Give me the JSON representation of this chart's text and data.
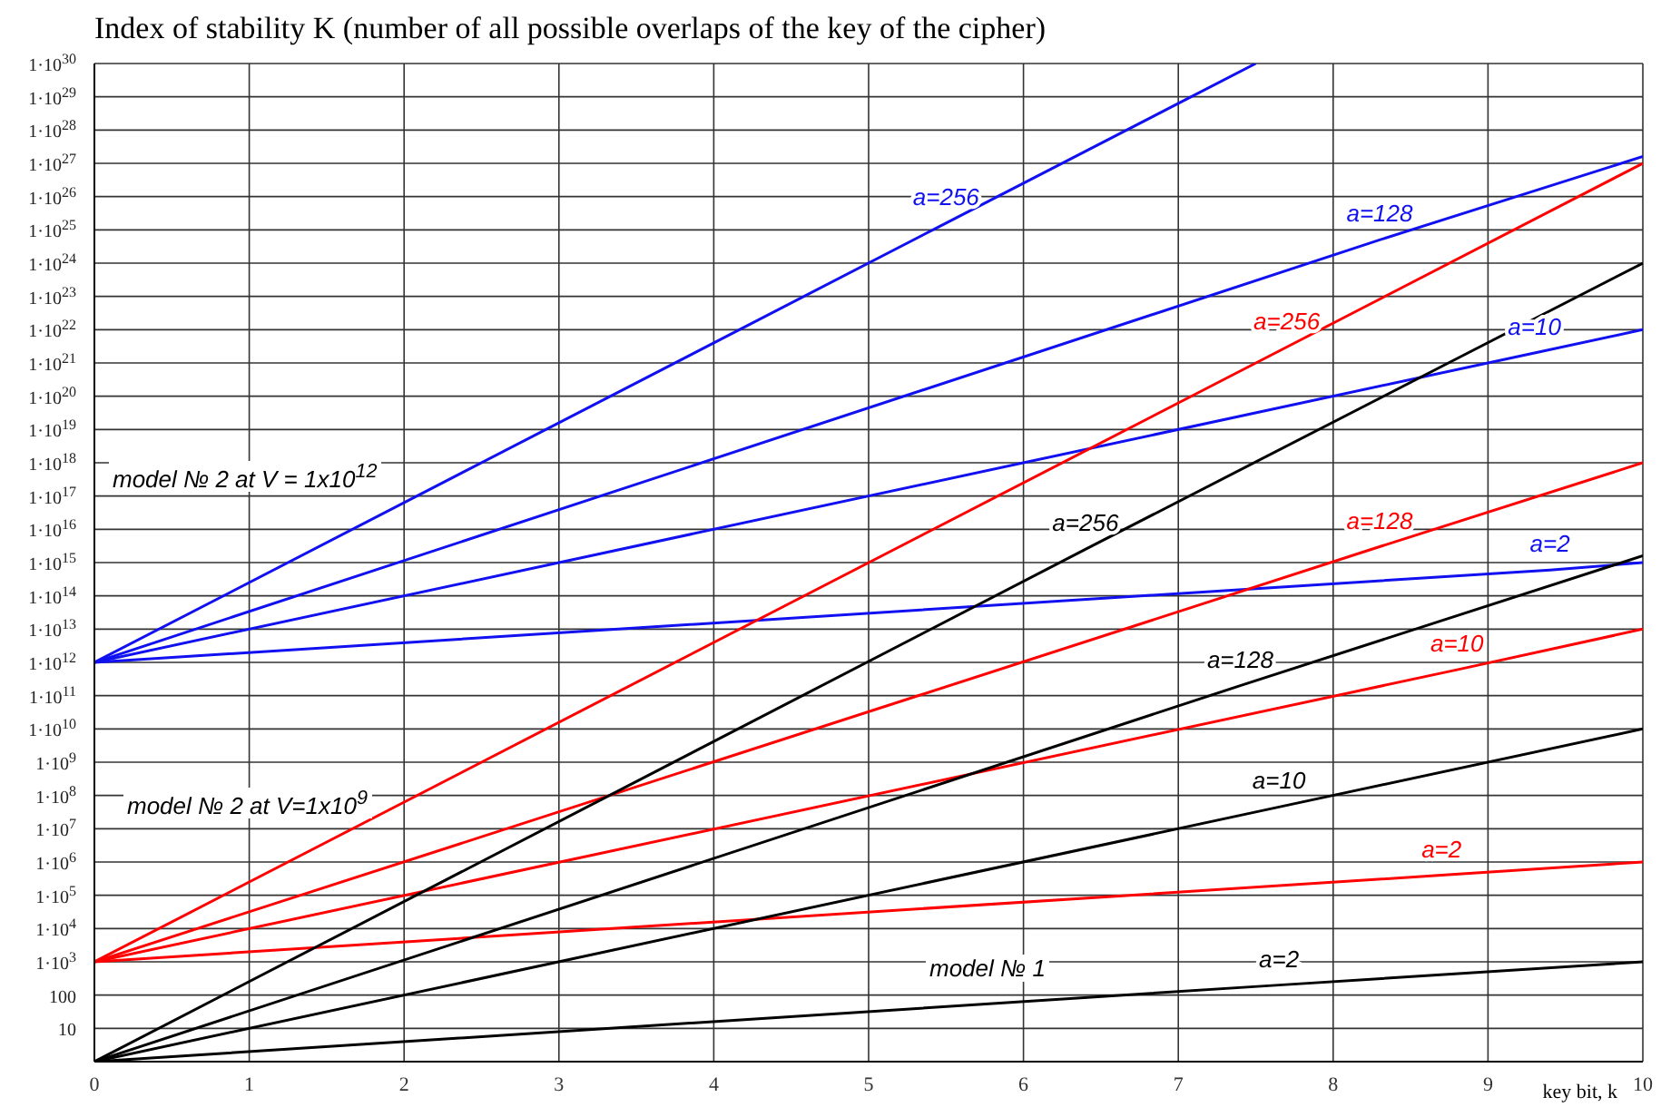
{
  "chart_data": {
    "type": "line",
    "title": "Index of stability K (number of all possible overlaps of the key of the cipher)",
    "xlabel": "key bit, k",
    "log": "y",
    "grid": true,
    "marker": "none",
    "line_style": "solid",
    "xlim": [
      0,
      10
    ],
    "xticks": [
      0,
      1,
      2,
      3,
      4,
      5,
      6,
      7,
      8,
      9,
      10
    ],
    "ylim": [
      1,
      1e+30
    ],
    "yticks": [
      10,
      100,
      {
        "value": 1000.0,
        "label": "1·10$^{3}$"
      },
      {
        "value": 10000.0,
        "label": "1·10$^{4}$"
      },
      {
        "value": 100000.0,
        "label": "1·10$^{5}$"
      },
      {
        "value": 1000000.0,
        "label": "1·10$^{6}$"
      },
      {
        "value": 10000000.0,
        "label": "1·10$^{7}$"
      },
      {
        "value": 100000000.0,
        "label": "1·10$^{8}$"
      },
      {
        "value": 1000000000.0,
        "label": "1·10$^{9}$"
      },
      {
        "value": 10000000000.0,
        "label": "1·10$^{10}$"
      },
      {
        "value": 100000000000.0,
        "label": "1·10$^{11}$"
      },
      {
        "value": 1000000000000.0,
        "label": "1·10$^{12}$"
      },
      {
        "value": 10000000000000.0,
        "label": "1·10$^{13}$"
      },
      {
        "value": 100000000000000.0,
        "label": "1·10$^{14}$"
      },
      {
        "value": 1000000000000000.0,
        "label": "1·10$^{15}$"
      },
      {
        "value": 1e+16,
        "label": "1·10$^{16}$"
      },
      {
        "value": 1e+17,
        "label": "1·10$^{17}$"
      },
      {
        "value": 1e+18,
        "label": "1·10$^{18}$"
      },
      {
        "value": 1e+19,
        "label": "1·10$^{19}$"
      },
      {
        "value": 1e+20,
        "label": "1·10$^{20}$"
      },
      {
        "value": 1e+21,
        "label": "1·10$^{21}$"
      },
      {
        "value": 1e+22,
        "label": "1·10$^{22}$"
      },
      {
        "value": 1e+23,
        "label": "1·10$^{23}$"
      },
      {
        "value": 1e+24,
        "label": "1·10$^{24}$"
      },
      {
        "value": 1e+25,
        "label": "1·10$^{25}$"
      },
      {
        "value": 1e+26,
        "label": "1·10$^{26}$"
      },
      {
        "value": 1e+27,
        "label": "1·10$^{27}$"
      },
      {
        "value": 1e+28,
        "label": "1·10$^{28}$"
      },
      {
        "value": 1e+29,
        "label": "1·10$^{29}$"
      },
      {
        "value": 1e+30,
        "label": "1·10$^{30}$"
      }
    ],
    "series": [
      {
        "name": "a=256",
        "color": "#1010f0",
        "x": [
          0,
          5.5,
          7.5
        ],
        "values": [
          1000000000000.0,
          1.6e+25,
          1e+30
        ]
      },
      {
        "name": "a=128",
        "color": "#1010f0",
        "x": [
          0,
          8.3,
          10
        ],
        "values": [
          1000000000000.0,
          5e+24,
          1.6e+27
        ]
      },
      {
        "name": "a=10",
        "color": "#1010f0",
        "x": [
          0,
          9.3,
          10
        ],
        "values": [
          1000000000000.0,
          2e+21,
          1e+22
        ]
      },
      {
        "name": "a=2",
        "color": "#1010f0",
        "x": [
          0,
          9.4,
          10
        ],
        "values": [
          1000000000000.0,
          600000000000000.0,
          1000000000000000.0
        ]
      },
      {
        "name": "a=256",
        "color": "#ff0000",
        "x": [
          0,
          7.7,
          10
        ],
        "values": [
          1000.0,
          3e+21,
          1e+27
        ]
      },
      {
        "name": "a=128",
        "color": "#ff0000",
        "x": [
          0,
          8.3,
          10
        ],
        "values": [
          1000.0,
          3000000000000000.0,
          1e+18
        ]
      },
      {
        "name": "a=10",
        "color": "#ff0000",
        "x": [
          0,
          8.8,
          10
        ],
        "values": [
          1000.0,
          600000000000.0,
          10000000000000.0
        ]
      },
      {
        "name": "a=2",
        "color": "#ff0000",
        "x": [
          0,
          8.7,
          10
        ],
        "values": [
          1000.0,
          400000.0,
          1000000.0
        ]
      },
      {
        "name": "a=256",
        "color": "#000000",
        "x": [
          0,
          6.4,
          10
        ],
        "values": [
          1,
          2500000000000000.0,
          1e+24
        ]
      },
      {
        "name": "a=128",
        "color": "#000000",
        "x": [
          0,
          7.4,
          10
        ],
        "values": [
          1,
          200000000000.0,
          1600000000000000.0
        ]
      },
      {
        "name": "a=10",
        "color": "#000000",
        "x": [
          0,
          7.65,
          10
        ],
        "values": [
          1,
          45000000.0,
          10000000000.0
        ]
      },
      {
        "name": "a=2",
        "color": "#000000",
        "x": [
          0,
          7.65,
          10
        ],
        "values": [
          1,
          200,
          1000.0
        ]
      }
    ],
    "annotations": [
      "model  № 2  at  V = 1x10$^{12}$",
      "model  № 2  at  V=1x10$^{9}$",
      "model  № 1"
    ]
  }
}
